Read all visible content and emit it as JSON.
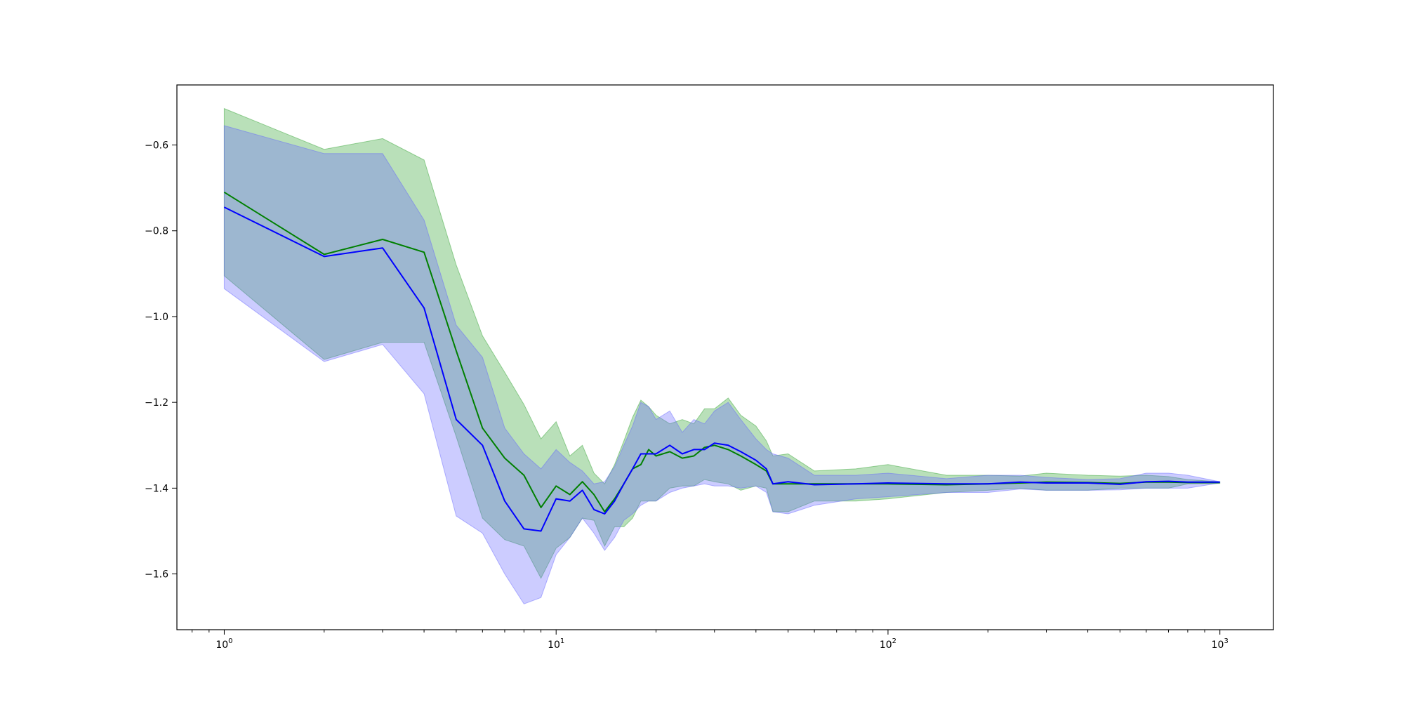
{
  "chart_data": {
    "type": "line",
    "title": "",
    "xlabel": "",
    "ylabel": "",
    "x_scale": "log",
    "xlim": [
      0.72,
      1450
    ],
    "ylim": [
      -1.73,
      -0.46
    ],
    "grid": false,
    "legend": "none",
    "x_ticks": [
      {
        "value": 1,
        "base": "10",
        "exp": "0"
      },
      {
        "value": 10,
        "base": "10",
        "exp": "1"
      },
      {
        "value": 100,
        "base": "10",
        "exp": "2"
      },
      {
        "value": 1000,
        "base": "10",
        "exp": "3"
      }
    ],
    "y_ticks": [
      {
        "value": -0.6,
        "label": "−0.6"
      },
      {
        "value": -0.8,
        "label": "−0.8"
      },
      {
        "value": -1.0,
        "label": "−1.0"
      },
      {
        "value": -1.2,
        "label": "−1.2"
      },
      {
        "value": -1.4,
        "label": "−1.4"
      },
      {
        "value": -1.6,
        "label": "−1.6"
      }
    ],
    "series": [
      {
        "color": "#008000",
        "band_color": "#2ca02c",
        "x": [
          1,
          2,
          3,
          4,
          5,
          6,
          7,
          8,
          9,
          10,
          11,
          12,
          13,
          14,
          15,
          16,
          17,
          18,
          19,
          20,
          22,
          24,
          26,
          28,
          30,
          33,
          36,
          40,
          43,
          45,
          50,
          60,
          80,
          100,
          150,
          200,
          250,
          300,
          400,
          500,
          600,
          700,
          800,
          1000
        ],
        "mean": [
          -0.71,
          -0.855,
          -0.82,
          -0.85,
          -1.08,
          -1.26,
          -1.33,
          -1.37,
          -1.445,
          -1.395,
          -1.415,
          -1.385,
          -1.415,
          -1.455,
          -1.425,
          -1.39,
          -1.355,
          -1.345,
          -1.31,
          -1.325,
          -1.315,
          -1.33,
          -1.325,
          -1.305,
          -1.3,
          -1.31,
          -1.325,
          -1.345,
          -1.36,
          -1.39,
          -1.39,
          -1.39,
          -1.39,
          -1.39,
          -1.392,
          -1.39,
          -1.388,
          -1.386,
          -1.387,
          -1.389,
          -1.386,
          -1.386,
          -1.387,
          -1.387
        ],
        "upper": [
          -0.515,
          -0.61,
          -0.585,
          -0.635,
          -0.88,
          -1.045,
          -1.13,
          -1.205,
          -1.285,
          -1.245,
          -1.325,
          -1.3,
          -1.365,
          -1.39,
          -1.345,
          -1.29,
          -1.235,
          -1.195,
          -1.21,
          -1.23,
          -1.25,
          -1.24,
          -1.25,
          -1.215,
          -1.215,
          -1.19,
          -1.23,
          -1.255,
          -1.29,
          -1.325,
          -1.32,
          -1.36,
          -1.355,
          -1.345,
          -1.37,
          -1.37,
          -1.372,
          -1.365,
          -1.37,
          -1.372,
          -1.37,
          -1.373,
          -1.38,
          -1.385
        ],
        "lower": [
          -0.905,
          -1.1,
          -1.06,
          -1.06,
          -1.28,
          -1.47,
          -1.52,
          -1.535,
          -1.61,
          -1.54,
          -1.515,
          -1.47,
          -1.475,
          -1.535,
          -1.49,
          -1.49,
          -1.47,
          -1.43,
          -1.43,
          -1.43,
          -1.4,
          -1.395,
          -1.395,
          -1.38,
          -1.385,
          -1.39,
          -1.405,
          -1.395,
          -1.4,
          -1.455,
          -1.455,
          -1.43,
          -1.43,
          -1.425,
          -1.41,
          -1.405,
          -1.4,
          -1.405,
          -1.405,
          -1.4,
          -1.4,
          -1.4,
          -1.39,
          -1.389
        ]
      },
      {
        "color": "#0000ff",
        "band_color": "#6464ff",
        "x": [
          1,
          2,
          3,
          4,
          5,
          6,
          7,
          8,
          9,
          10,
          11,
          12,
          13,
          14,
          15,
          16,
          17,
          18,
          19,
          20,
          22,
          24,
          26,
          28,
          30,
          33,
          36,
          40,
          43,
          45,
          50,
          60,
          80,
          100,
          150,
          200,
          250,
          300,
          400,
          500,
          600,
          700,
          800,
          1000
        ],
        "mean": [
          -0.745,
          -0.86,
          -0.84,
          -0.98,
          -1.24,
          -1.3,
          -1.43,
          -1.495,
          -1.5,
          -1.425,
          -1.43,
          -1.405,
          -1.45,
          -1.46,
          -1.43,
          -1.39,
          -1.355,
          -1.32,
          -1.32,
          -1.32,
          -1.3,
          -1.32,
          -1.31,
          -1.31,
          -1.295,
          -1.3,
          -1.315,
          -1.335,
          -1.355,
          -1.39,
          -1.385,
          -1.392,
          -1.39,
          -1.388,
          -1.39,
          -1.39,
          -1.386,
          -1.388,
          -1.388,
          -1.391,
          -1.385,
          -1.384,
          -1.386,
          -1.386
        ],
        "upper": [
          -0.555,
          -0.62,
          -0.62,
          -0.775,
          -1.02,
          -1.095,
          -1.26,
          -1.32,
          -1.355,
          -1.31,
          -1.34,
          -1.36,
          -1.39,
          -1.385,
          -1.35,
          -1.3,
          -1.255,
          -1.2,
          -1.21,
          -1.24,
          -1.22,
          -1.27,
          -1.24,
          -1.25,
          -1.22,
          -1.2,
          -1.24,
          -1.285,
          -1.31,
          -1.32,
          -1.33,
          -1.37,
          -1.37,
          -1.365,
          -1.378,
          -1.37,
          -1.37,
          -1.375,
          -1.38,
          -1.378,
          -1.365,
          -1.365,
          -1.37,
          -1.385
        ],
        "lower": [
          -0.935,
          -1.105,
          -1.065,
          -1.18,
          -1.465,
          -1.505,
          -1.6,
          -1.67,
          -1.655,
          -1.555,
          -1.515,
          -1.47,
          -1.505,
          -1.545,
          -1.515,
          -1.475,
          -1.46,
          -1.44,
          -1.43,
          -1.43,
          -1.41,
          -1.4,
          -1.395,
          -1.39,
          -1.395,
          -1.395,
          -1.4,
          -1.395,
          -1.41,
          -1.455,
          -1.46,
          -1.44,
          -1.425,
          -1.42,
          -1.41,
          -1.41,
          -1.402,
          -1.405,
          -1.405,
          -1.404,
          -1.4,
          -1.4,
          -1.4,
          -1.388
        ]
      }
    ]
  }
}
